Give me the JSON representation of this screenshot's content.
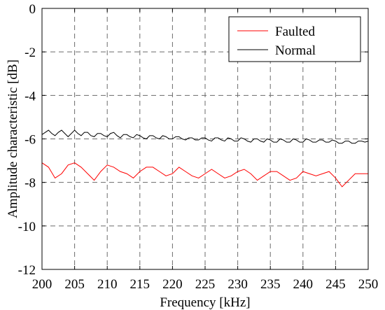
{
  "chart_data": {
    "type": "line",
    "title": "",
    "xlabel": "Frequency [kHz]",
    "ylabel": "Amplitude characteristic [dB]",
    "xlim": [
      200,
      250
    ],
    "ylim": [
      -12,
      0
    ],
    "xticks": [
      200,
      205,
      210,
      215,
      220,
      225,
      230,
      235,
      240,
      245,
      250
    ],
    "yticks": [
      0,
      -2,
      -4,
      -6,
      -8,
      -10,
      -12
    ],
    "grid": true,
    "grid_style": "dashed",
    "legend_position": "top-right",
    "series": [
      {
        "name": "Faulted",
        "color": "#ff0000",
        "x": [
          200,
          201,
          202,
          203,
          204,
          205,
          206,
          207,
          208,
          209,
          210,
          211,
          212,
          213,
          214,
          215,
          216,
          217,
          218,
          219,
          220,
          221,
          222,
          223,
          224,
          225,
          226,
          227,
          228,
          229,
          230,
          231,
          232,
          233,
          234,
          235,
          236,
          237,
          238,
          239,
          240,
          241,
          242,
          243,
          244,
          245,
          246,
          247,
          248,
          249,
          250
        ],
        "y": [
          -7.1,
          -7.3,
          -7.8,
          -7.6,
          -7.2,
          -7.1,
          -7.3,
          -7.6,
          -7.9,
          -7.5,
          -7.2,
          -7.3,
          -7.5,
          -7.6,
          -7.8,
          -7.5,
          -7.3,
          -7.3,
          -7.5,
          -7.7,
          -7.6,
          -7.3,
          -7.5,
          -7.7,
          -7.8,
          -7.6,
          -7.4,
          -7.6,
          -7.8,
          -7.7,
          -7.5,
          -7.4,
          -7.6,
          -7.9,
          -7.7,
          -7.5,
          -7.5,
          -7.7,
          -7.9,
          -7.8,
          -7.5,
          -7.6,
          -7.7,
          -7.6,
          -7.5,
          -7.8,
          -8.2,
          -7.9,
          -7.6,
          -7.6,
          -7.6
        ]
      },
      {
        "name": "Normal",
        "color": "#000000",
        "x": [
          200,
          200.5,
          201,
          201.5,
          202,
          202.5,
          203,
          203.5,
          204,
          204.5,
          205,
          205.5,
          206,
          206.5,
          207,
          207.5,
          208,
          208.5,
          209,
          209.5,
          210,
          210.5,
          211,
          211.5,
          212,
          212.5,
          213,
          213.5,
          214,
          214.5,
          215,
          215.5,
          216,
          216.5,
          217,
          217.5,
          218,
          218.5,
          219,
          219.5,
          220,
          220.5,
          221,
          221.5,
          222,
          222.5,
          223,
          223.5,
          224,
          224.5,
          225,
          225.5,
          226,
          226.5,
          227,
          227.5,
          228,
          228.5,
          229,
          229.5,
          230,
          230.5,
          231,
          231.5,
          232,
          232.5,
          233,
          233.5,
          234,
          234.5,
          235,
          235.5,
          236,
          236.5,
          237,
          237.5,
          238,
          238.5,
          239,
          239.5,
          240,
          240.5,
          241,
          241.5,
          242,
          242.5,
          243,
          243.5,
          244,
          244.5,
          245,
          245.5,
          246,
          246.5,
          247,
          247.5,
          248,
          248.5,
          249,
          249.5,
          250
        ],
        "y": [
          -5.8,
          -5.7,
          -5.6,
          -5.75,
          -5.85,
          -5.7,
          -5.6,
          -5.75,
          -5.9,
          -5.75,
          -5.6,
          -5.75,
          -5.85,
          -5.7,
          -5.7,
          -5.85,
          -5.9,
          -5.75,
          -5.75,
          -5.85,
          -5.9,
          -5.75,
          -5.7,
          -5.85,
          -5.95,
          -5.8,
          -5.8,
          -5.9,
          -5.95,
          -5.8,
          -5.85,
          -5.95,
          -6.0,
          -5.85,
          -5.85,
          -5.95,
          -6.0,
          -5.85,
          -5.9,
          -6.0,
          -6.0,
          -5.9,
          -5.9,
          -6.0,
          -6.05,
          -5.95,
          -5.95,
          -6.05,
          -6.05,
          -5.95,
          -5.95,
          -6.05,
          -6.1,
          -5.95,
          -5.95,
          -6.05,
          -6.1,
          -5.95,
          -6.0,
          -6.1,
          -6.1,
          -5.95,
          -6.0,
          -6.1,
          -6.15,
          -6.0,
          -6.0,
          -6.1,
          -6.15,
          -6.0,
          -6.05,
          -6.15,
          -6.15,
          -6.0,
          -6.05,
          -6.15,
          -6.15,
          -6.0,
          -6.05,
          -6.15,
          -6.15,
          -6.0,
          -6.05,
          -6.15,
          -6.15,
          -6.05,
          -6.05,
          -6.15,
          -6.15,
          -6.05,
          -6.1,
          -6.2,
          -6.2,
          -6.1,
          -6.1,
          -6.2,
          -6.2,
          -6.1,
          -6.1,
          -6.15,
          -6.1
        ]
      }
    ]
  }
}
